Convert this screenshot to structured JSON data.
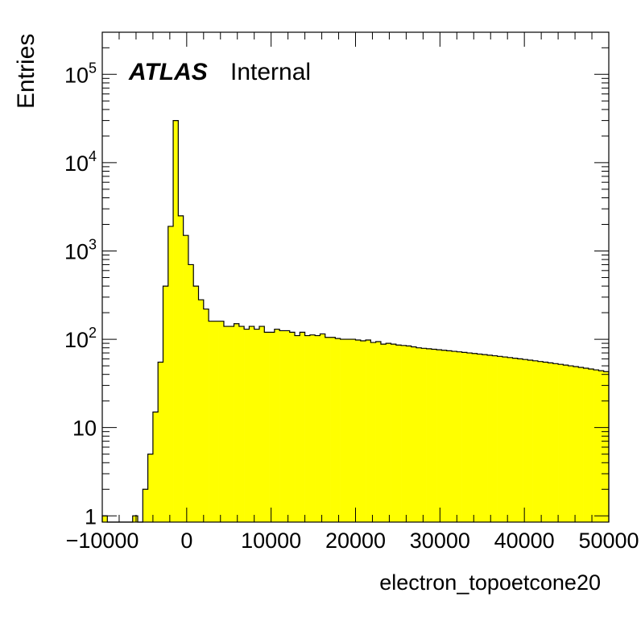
{
  "chart_data": {
    "type": "histogram",
    "title": "",
    "xlabel": "electron_topoetcone20",
    "ylabel": "Entries",
    "label_bold": "ATLAS",
    "label_normal": "Internal",
    "xlim": [
      -10000,
      50000
    ],
    "ylim": [
      0.85,
      300000
    ],
    "yscale": "log",
    "grid": false,
    "fill_color": "#ffff00",
    "line_color": "#000000",
    "x_tick_labels": [
      "−10000",
      "0",
      "10000",
      "20000",
      "30000",
      "40000",
      "50000"
    ],
    "y_ticks": [
      {
        "value": 1,
        "base": "1",
        "exp": ""
      },
      {
        "value": 10,
        "base": "10",
        "exp": ""
      },
      {
        "value": 100,
        "base": "10",
        "exp": "2"
      },
      {
        "value": 1000,
        "base": "10",
        "exp": "3"
      },
      {
        "value": 10000,
        "base": "10",
        "exp": "4"
      },
      {
        "value": 100000,
        "base": "10",
        "exp": "5"
      }
    ],
    "bin_start": -10000,
    "bin_width": 600,
    "values": [
      1,
      0,
      0,
      0,
      0,
      0,
      1,
      0,
      2,
      5,
      15,
      55,
      400,
      1900,
      30000,
      2500,
      1500,
      700,
      400,
      280,
      220,
      160,
      160,
      160,
      140,
      140,
      150,
      140,
      130,
      140,
      130,
      140,
      120,
      120,
      130,
      125,
      125,
      120,
      110,
      120,
      110,
      112,
      110,
      115,
      105,
      105,
      102,
      100,
      100,
      100,
      98,
      96,
      98,
      92,
      94,
      88,
      90,
      88,
      86,
      85,
      84,
      82,
      80,
      79,
      78,
      77,
      76,
      75,
      74,
      73,
      72,
      71,
      70,
      69,
      68,
      67,
      66,
      65,
      64,
      63,
      62,
      61,
      60,
      59,
      58,
      57,
      56,
      55,
      54,
      53,
      52,
      51,
      50,
      49,
      48,
      47,
      46,
      45,
      44,
      43
    ]
  }
}
